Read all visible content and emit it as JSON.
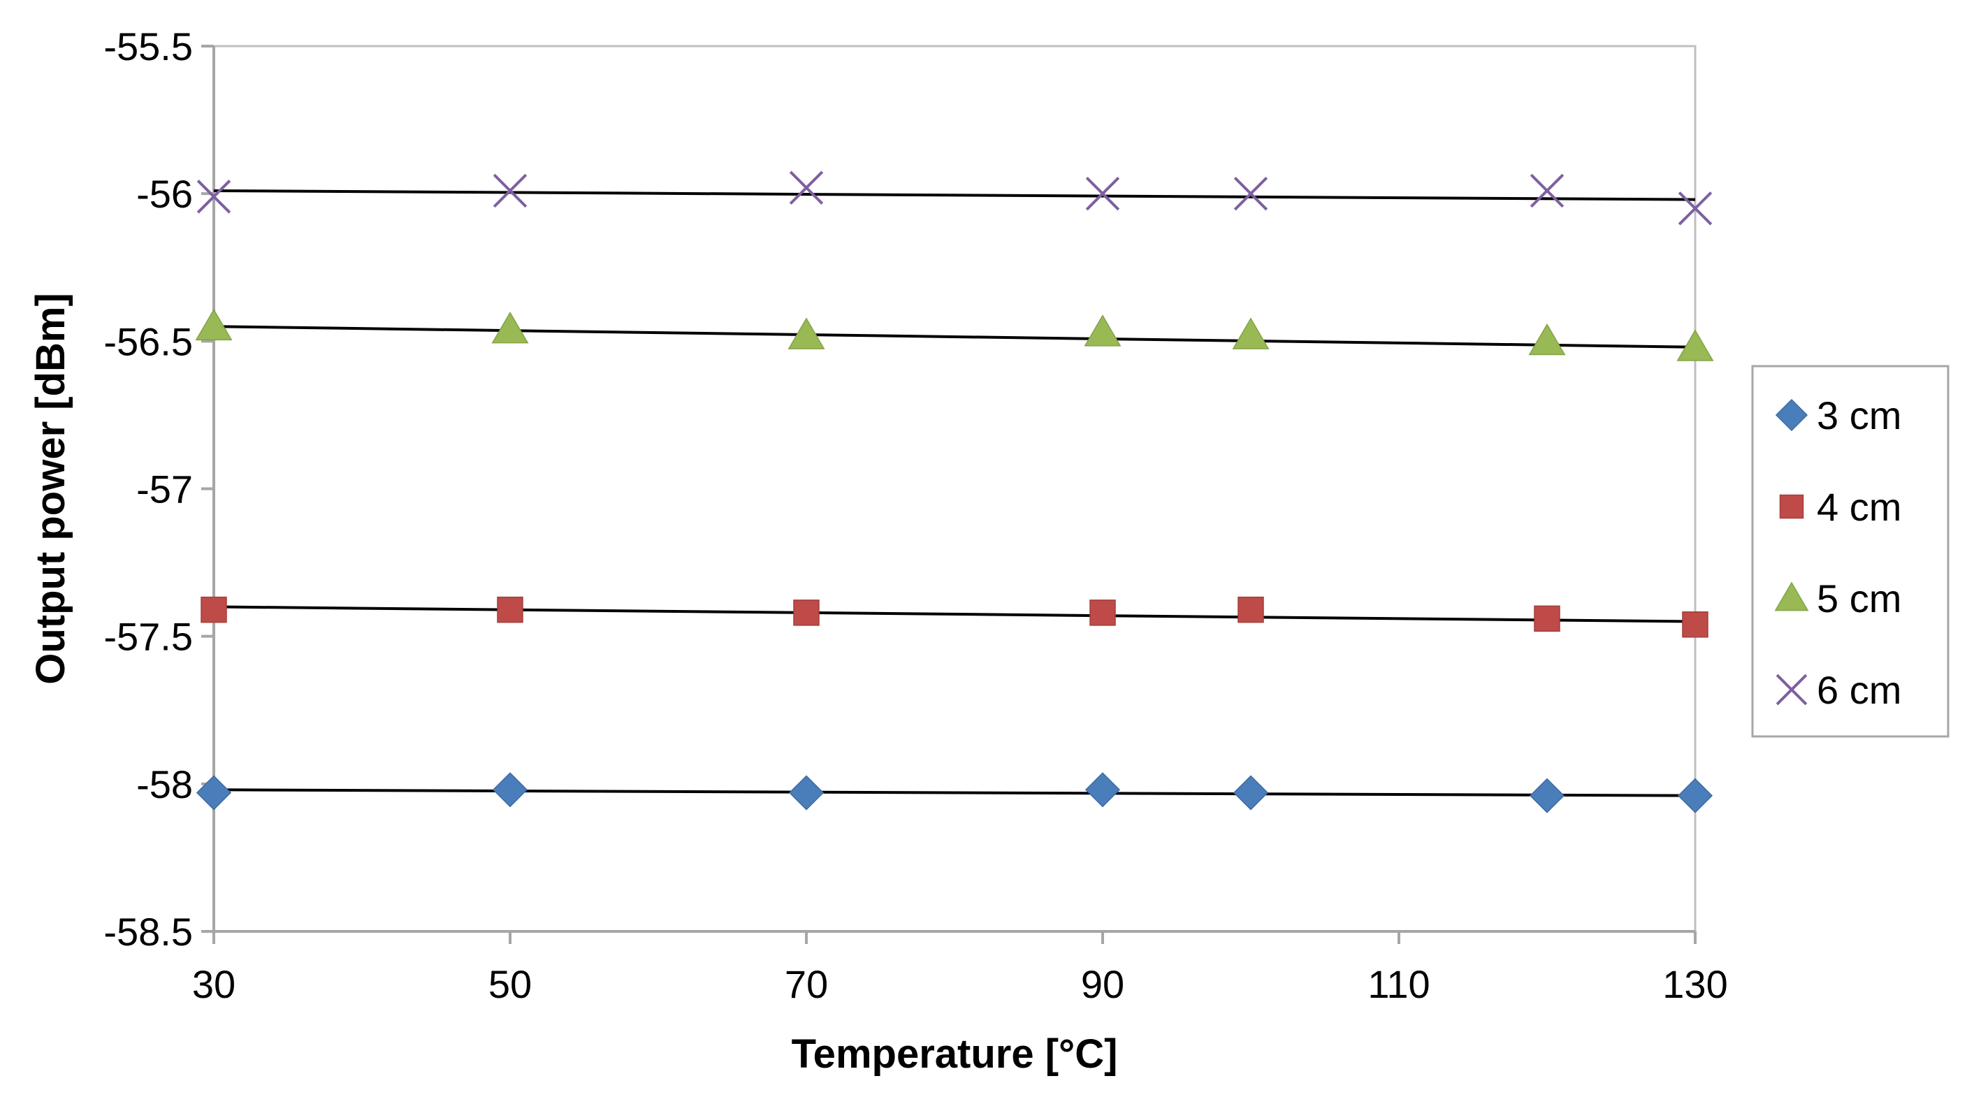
{
  "chart_data": {
    "type": "scatter",
    "title": "",
    "xlabel": "Temperature [°C]",
    "ylabel": "Output power [dBm]",
    "xlim": [
      30,
      130
    ],
    "ylim": [
      -58.5,
      -55.5
    ],
    "x_ticks": [
      "30",
      "50",
      "70",
      "90",
      "110",
      "130"
    ],
    "x_tick_values": [
      30,
      50,
      70,
      90,
      110,
      130
    ],
    "y_ticks": [
      "-55.5",
      "-56",
      "-56.5",
      "-57",
      "-57.5",
      "-58",
      "-58.5"
    ],
    "y_tick_values": [
      -55.5,
      -56,
      -56.5,
      -57,
      -57.5,
      -58,
      -58.5
    ],
    "grid": false,
    "legend_position": "right",
    "x": [
      30,
      50,
      70,
      90,
      100,
      120,
      130
    ],
    "series": [
      {
        "name": "3 cm",
        "marker": "diamond",
        "color": "#4A7EBB",
        "values": [
          -58.03,
          -58.02,
          -58.03,
          -58.02,
          -58.03,
          -58.04,
          -58.04
        ],
        "trendline": [
          -58.02,
          -58.04
        ]
      },
      {
        "name": "4 cm",
        "marker": "square",
        "color": "#BE4B48",
        "values": [
          -57.41,
          -57.41,
          -57.42,
          -57.42,
          -57.41,
          -57.44,
          -57.46
        ],
        "trendline": [
          -57.4,
          -57.45
        ]
      },
      {
        "name": "5 cm",
        "marker": "triangle",
        "color": "#98B954",
        "values": [
          -56.45,
          -56.46,
          -56.48,
          -56.47,
          -56.48,
          -56.5,
          -56.52
        ],
        "trendline": [
          -56.45,
          -56.52
        ]
      },
      {
        "name": "6 cm",
        "marker": "x",
        "color": "#7D60A0",
        "values": [
          -56.01,
          -55.99,
          -55.98,
          -56.0,
          -56.0,
          -55.99,
          -56.05
        ],
        "trendline": [
          -55.99,
          -56.02
        ]
      }
    ],
    "colors": {
      "axis": "#A6A6A6",
      "trendline": "#000000",
      "legend_border": "#A6A6A6"
    }
  }
}
